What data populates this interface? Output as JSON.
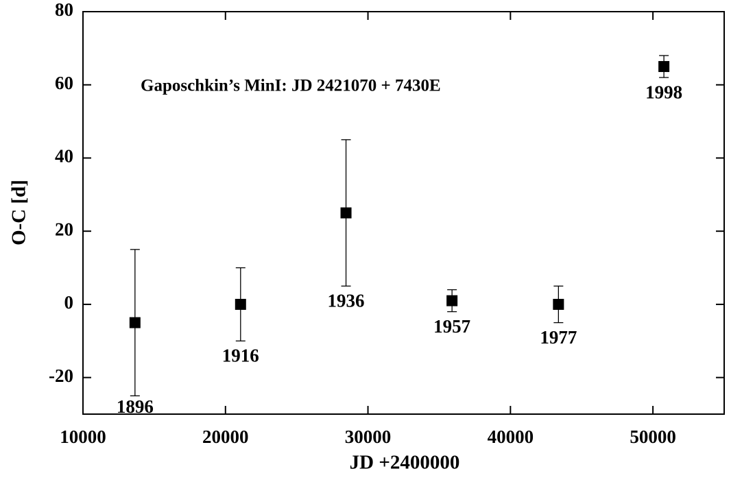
{
  "chart_data": {
    "type": "scatter",
    "annotation": "Gaposchkin’s MinI: JD 2421070 + 7430E",
    "x_label": "JD +2400000",
    "y_label": "O-C [d]",
    "xlim": [
      10000,
      55000
    ],
    "xticks": [
      10000,
      20000,
      30000,
      40000,
      50000
    ],
    "ylim": [
      -30,
      80
    ],
    "yticks": [
      -20,
      0,
      20,
      40,
      60,
      80
    ],
    "series": [
      {
        "color": "#000000",
        "x": [
          13650,
          21060,
          28460,
          35900,
          43370,
          50770
        ],
        "values": [
          -5,
          0,
          25,
          1,
          0,
          65
        ],
        "errors": [
          20,
          10,
          20,
          3,
          5,
          3
        ],
        "point_labels": [
          "1896",
          "1916",
          "1936",
          "1957",
          "1977",
          "1998"
        ]
      }
    ]
  }
}
